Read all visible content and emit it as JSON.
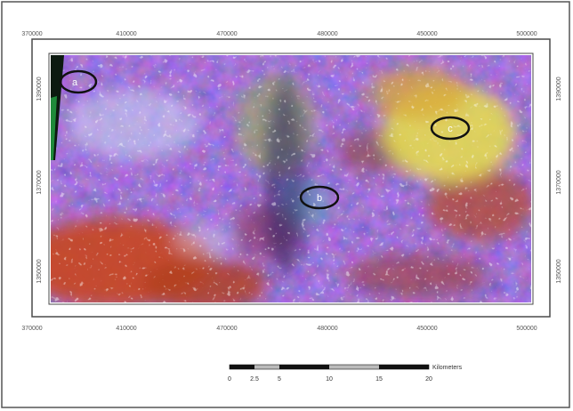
{
  "map": {
    "top_ticks": [
      "370000",
      "410000",
      "470000",
      "480000",
      "450000",
      "500000"
    ],
    "bottom_ticks": [
      "370000",
      "410000",
      "470000",
      "480000",
      "450000",
      "500000"
    ],
    "left_ticks": [
      "1390000",
      "1370000",
      "1350000"
    ],
    "right_ticks": [
      "1390000",
      "1370000",
      "1350000"
    ],
    "annotations": [
      {
        "id": "a",
        "label": "a"
      },
      {
        "id": "b",
        "label": "b"
      },
      {
        "id": "c",
        "label": "c"
      }
    ],
    "colors": {
      "frame": "#4a4a4a",
      "blue_base": "#3b3f9e",
      "yellow_alteration": "#e8e04a",
      "orange_red": "#c8451e"
    }
  },
  "scale_bar": {
    "labels": [
      "0",
      "2.5",
      "5",
      "10",
      "15",
      "20"
    ],
    "unit": "Kilometers"
  }
}
